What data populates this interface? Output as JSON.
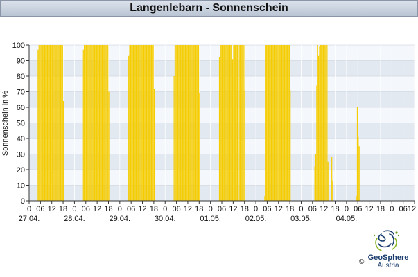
{
  "title": "Langenlebarn - Sonnenschein",
  "logo": {
    "name": "GeoSphere",
    "sub": "Austria",
    "copyright": "©"
  },
  "colors": {
    "bar": "#f5cc00",
    "bar_edge": "#d9a800",
    "band": "#e3e9f1",
    "band_alt": "#f4f7fb"
  },
  "chart_data": {
    "type": "bar",
    "title": "Langenlebarn - Sonnenschein",
    "ylabel": "Sonnenschein in %",
    "xlabel": "",
    "ylim": [
      0,
      100
    ],
    "yticks": [
      0,
      10,
      20,
      30,
      40,
      50,
      60,
      70,
      80,
      90,
      100
    ],
    "x_hour_ticks": [
      "0",
      "06",
      "12",
      "18"
    ],
    "end_tick": "12",
    "days": [
      "27.04.",
      "28.04.",
      "29.04.",
      "30.04.",
      "01.05.",
      "02.05.",
      "03.05.",
      "04.05."
    ],
    "interval_hours": 0.5,
    "grid": true,
    "legend": "none",
    "series": [
      {
        "day": "27.04.",
        "start_hour": 4.5,
        "values": [
          97,
          100,
          100,
          100,
          100,
          100,
          100,
          100,
          100,
          100,
          100,
          100,
          100,
          100,
          100,
          100,
          100,
          100,
          100,
          100,
          100,
          100,
          100,
          100,
          100,
          100,
          100,
          64
        ]
      },
      {
        "day": "28.04.",
        "start_hour": 4.5,
        "values": [
          97,
          100,
          100,
          100,
          100,
          100,
          100,
          100,
          100,
          100,
          100,
          100,
          100,
          100,
          100,
          100,
          100,
          100,
          100,
          100,
          100,
          100,
          100,
          100,
          100,
          100,
          100,
          70
        ]
      },
      {
        "day": "29.04.",
        "start_hour": 4.5,
        "values": [
          93,
          100,
          100,
          100,
          100,
          100,
          100,
          100,
          100,
          100,
          100,
          100,
          100,
          100,
          100,
          100,
          100,
          100,
          100,
          100,
          100,
          100,
          100,
          100,
          100,
          100,
          100,
          72
        ]
      },
      {
        "day": "30.04.",
        "start_hour": 4.5,
        "values": [
          80,
          100,
          100,
          100,
          100,
          100,
          100,
          100,
          100,
          100,
          100,
          100,
          100,
          100,
          100,
          100,
          100,
          100,
          100,
          100,
          100,
          100,
          100,
          100,
          100,
          100,
          100,
          69
        ]
      },
      {
        "day": "01.05.",
        "start_hour": 4.5,
        "values": [
          92,
          100,
          100,
          100,
          100,
          100,
          100,
          100,
          100,
          100,
          100,
          100,
          100,
          100,
          91,
          100,
          100,
          100,
          100,
          100,
          0,
          100,
          100,
          100,
          100,
          100,
          100,
          71
        ]
      },
      {
        "day": "02.05.",
        "start_hour": 4.5,
        "values": [
          3,
          100,
          100,
          100,
          100,
          100,
          100,
          100,
          100,
          100,
          100,
          100,
          100,
          100,
          100,
          100,
          100,
          100,
          100,
          100,
          100,
          100,
          100,
          100,
          100,
          100,
          100,
          71
        ]
      },
      {
        "day": "03.05.",
        "start_hour": 7.0,
        "values": [
          22,
          30,
          74,
          100,
          93,
          99,
          100,
          100,
          100,
          100,
          100,
          100,
          100,
          100,
          25,
          0,
          0,
          0,
          28,
          13
        ]
      },
      {
        "day": "04.05.",
        "start_hour": 5.0,
        "values": [
          3,
          60,
          41,
          35
        ]
      }
    ]
  }
}
